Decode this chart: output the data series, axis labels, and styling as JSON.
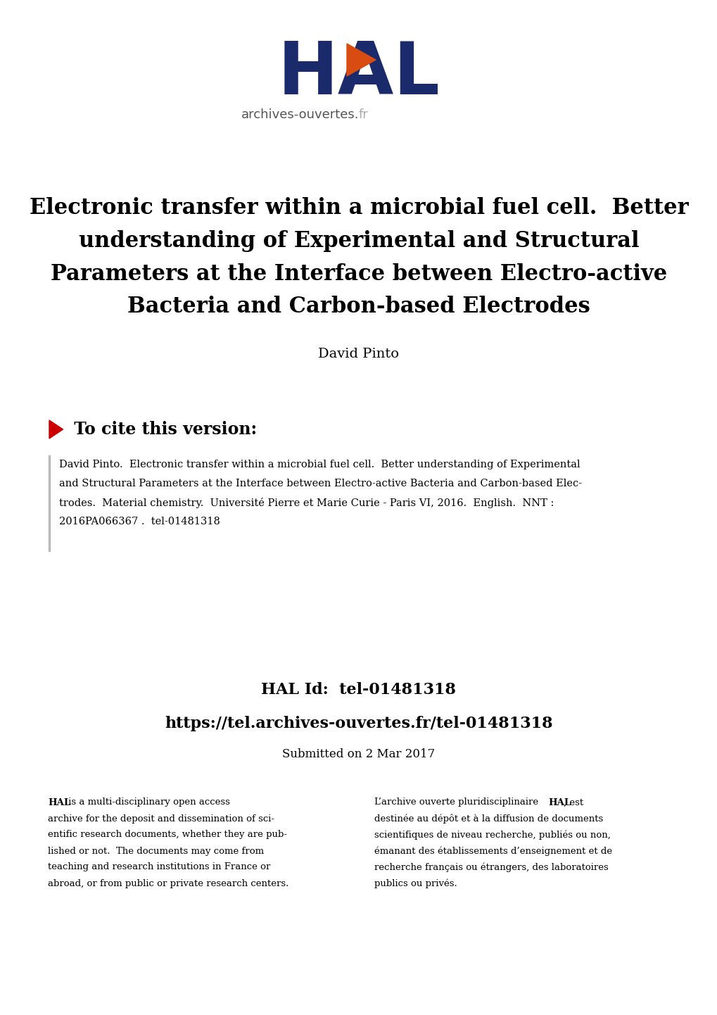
{
  "bg_color": "#ffffff",
  "title_line1": "Electronic transfer within a microbial fuel cell.  Better",
  "title_line2": "understanding of Experimental and Structural",
  "title_line3": "Parameters at the Interface between Electro-active",
  "title_line4": "Bacteria and Carbon-based Electrodes",
  "author": "David Pinto",
  "hal_color": "#1b2a6b",
  "arrow_color": "#d94c11",
  "section_arrow_color": "#cc0000",
  "cite_lines": [
    "David Pinto.  Electronic transfer within a microbial fuel cell.  Better understanding of Experimental",
    "and Structural Parameters at the Interface between Electro-active Bacteria and Carbon-based Elec-",
    "trodes.  Material chemistry.  Université Pierre et Marie Curie - Paris VI, 2016.  English.  NNT :",
    "2016PA066367 .  tel-01481318"
  ],
  "hal_id_label": "HAL Id:  tel-01481318",
  "hal_url": "https://tel.archives-ouvertes.fr/tel-01481318",
  "submitted": "Submitted on 2 Mar 2017",
  "left_col_lines": [
    "HAL|bold| is a multi-disciplinary open access",
    "archive for the deposit and dissemination of sci-",
    "entific research documents, whether they are pub-",
    "lished or not.  The documents may come from",
    "teaching and research institutions in France or",
    "abroad, or from public or private research centers."
  ],
  "right_col_lines": [
    "L’archive ouverte pluridisciplinaire |HAL|bold|, est",
    "destinée au dépôt et à la diffusion de documents",
    "scientifiques de niveau recherche, publiés ou non,",
    "émanant des établissements d’enseignement et de",
    "recherche français ou étrangers, des laboratoires",
    "publics ou privés."
  ]
}
